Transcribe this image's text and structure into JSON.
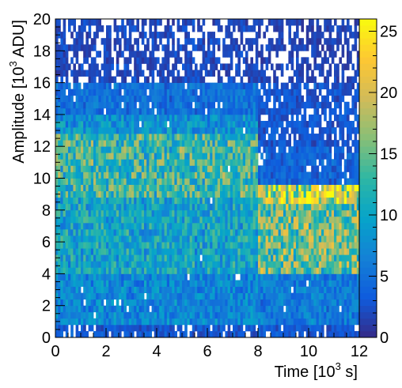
{
  "chart_data": {
    "type": "heatmap",
    "title": "",
    "xlabel_main": "Time [10",
    "xlabel_sup": "3",
    "xlabel_end": " s]",
    "ylabel_main": "Amplitude [10",
    "ylabel_sup": "3",
    "ylabel_end": " ADU]",
    "xlim": [
      0,
      12
    ],
    "ylim": [
      0,
      20
    ],
    "xticks": [
      0,
      2,
      4,
      6,
      8,
      10,
      12
    ],
    "yticks": [
      0,
      2,
      4,
      6,
      8,
      10,
      12,
      14,
      16,
      18,
      20
    ],
    "colorbar": {
      "range": [
        0,
        26
      ],
      "ticks": [
        0,
        5,
        10,
        15,
        20,
        25
      ],
      "palette": "parula-like",
      "colors": [
        "#352a87",
        "#0f5cdd",
        "#1481d6",
        "#06a4ca",
        "#2eb7a4",
        "#87bf77",
        "#d1bb59",
        "#fec832",
        "#f9fb0e"
      ]
    },
    "bins": {
      "x": 120,
      "y": 50
    },
    "cell_counts_approx": {
      "time_0_to_8k_s": {
        "amplitude_0_0p8k": 3,
        "amplitude_0p8k_4k": 7,
        "amplitude_4k_9k": 10,
        "amplitude_9k_12p8k": 13,
        "amplitude_12p8k_14k": 8,
        "amplitude_14k_16k": 5,
        "amplitude_16k_20k": 2
      },
      "time_8k_to_12k_s": {
        "amplitude_0_0p8k": 3,
        "amplitude_0p8k_4k": 6,
        "amplitude_4k_9k": 15,
        "amplitude_8p4k_9p6k": 20,
        "amplitude_9p6k_12k": 4,
        "amplitude_12k_16k": 3,
        "amplitude_16k_20k": 1.5
      }
    }
  }
}
